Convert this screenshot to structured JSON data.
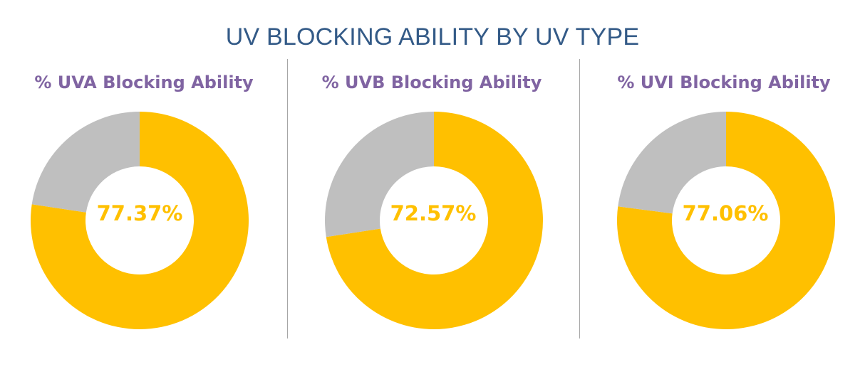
{
  "title": "UV BLOCKING ABILITY BY UV TYPE",
  "colors": {
    "title": "#335a87",
    "subtitle": "#8064a2",
    "blocked": "#ffc000",
    "remainder": "#bfbfbf",
    "label": "#ffc000",
    "divider": "#a6a6a6"
  },
  "chart_data": [
    {
      "type": "pie",
      "title": "% UVA Blocking Ability",
      "label": "77.37%",
      "slices": [
        {
          "value": 77.37,
          "color": "#ffc000"
        },
        {
          "value": 22.63,
          "color": "#bfbfbf"
        }
      ]
    },
    {
      "type": "pie",
      "title": "% UVB Blocking Ability",
      "label": "72.57%",
      "slices": [
        {
          "value": 72.57,
          "color": "#ffc000"
        },
        {
          "value": 27.43,
          "color": "#bfbfbf"
        }
      ]
    },
    {
      "type": "pie",
      "title": "% UVI Blocking Ability",
      "label": "77.06%",
      "slices": [
        {
          "value": 77.06,
          "color": "#ffc000"
        },
        {
          "value": 22.94,
          "color": "#bfbfbf"
        }
      ]
    }
  ]
}
